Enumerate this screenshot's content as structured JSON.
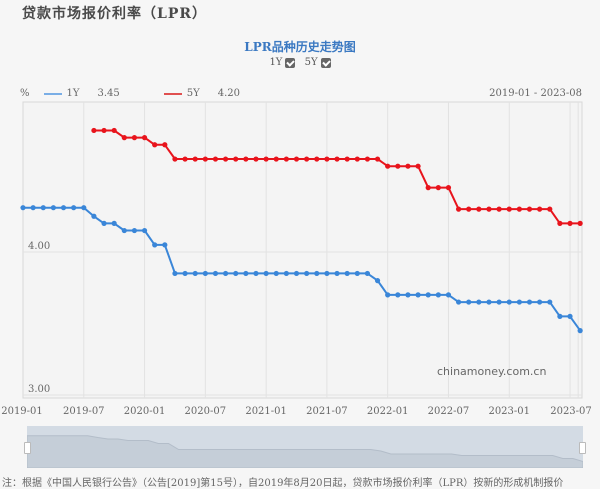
{
  "page": {
    "title": "贷款市场报价利率（LPR）",
    "chart_title": "LPR品种历史走势图",
    "toggles": [
      {
        "label": "1Y",
        "checked": true
      },
      {
        "label": "5Y",
        "checked": true
      }
    ],
    "unit": "%",
    "legend": [
      {
        "name": "1Y",
        "latest": "3.45",
        "color": "#3a86d8"
      },
      {
        "name": "5Y",
        "latest": "4.20",
        "color": "#e8141c"
      }
    ],
    "date_range": "2019-01 - 2023-08",
    "watermark": "chinamoney.com.cn",
    "footer": "注：根据《中国人民银行公告》（公告[2019]第15号），自2019年8月20日起，贷款市场报价利率（LPR）按新的形成机制报价"
  },
  "chart_data": {
    "type": "line",
    "title": "LPR品种历史走势图",
    "xlabel": "",
    "ylabel": "%",
    "ylim": [
      3.0,
      5.0
    ],
    "y_ticks": [
      "4.00",
      "3.00"
    ],
    "x_ticks": [
      "2019-01",
      "2019-07",
      "2020-01",
      "2020-07",
      "2021-01",
      "2021-07",
      "2022-01",
      "2022-07",
      "2023-01",
      "2023-07"
    ],
    "grid": true,
    "legend_position": "top-left",
    "x": [
      "2019-01",
      "2019-02",
      "2019-03",
      "2019-04",
      "2019-05",
      "2019-06",
      "2019-07",
      "2019-08",
      "2019-09",
      "2019-10",
      "2019-11",
      "2019-12",
      "2020-01",
      "2020-02",
      "2020-03",
      "2020-04",
      "2020-05",
      "2020-06",
      "2020-07",
      "2020-08",
      "2020-09",
      "2020-10",
      "2020-11",
      "2020-12",
      "2021-01",
      "2021-02",
      "2021-03",
      "2021-04",
      "2021-05",
      "2021-06",
      "2021-07",
      "2021-08",
      "2021-09",
      "2021-10",
      "2021-11",
      "2021-12",
      "2022-01",
      "2022-02",
      "2022-03",
      "2022-04",
      "2022-05",
      "2022-06",
      "2022-07",
      "2022-08",
      "2022-09",
      "2022-10",
      "2022-11",
      "2022-12",
      "2023-01",
      "2023-02",
      "2023-03",
      "2023-04",
      "2023-05",
      "2023-06",
      "2023-07",
      "2023-08"
    ],
    "series": [
      {
        "name": "1Y",
        "color": "#3a86d8",
        "values": [
          4.31,
          4.31,
          4.31,
          4.31,
          4.31,
          4.31,
          4.31,
          4.25,
          4.2,
          4.2,
          4.15,
          4.15,
          4.15,
          4.05,
          4.05,
          3.85,
          3.85,
          3.85,
          3.85,
          3.85,
          3.85,
          3.85,
          3.85,
          3.85,
          3.85,
          3.85,
          3.85,
          3.85,
          3.85,
          3.85,
          3.85,
          3.85,
          3.85,
          3.85,
          3.85,
          3.8,
          3.7,
          3.7,
          3.7,
          3.7,
          3.7,
          3.7,
          3.7,
          3.65,
          3.65,
          3.65,
          3.65,
          3.65,
          3.65,
          3.65,
          3.65,
          3.65,
          3.65,
          3.55,
          3.55,
          3.45
        ]
      },
      {
        "name": "5Y",
        "color": "#e8141c",
        "values": [
          null,
          null,
          null,
          null,
          null,
          null,
          null,
          4.85,
          4.85,
          4.85,
          4.8,
          4.8,
          4.8,
          4.75,
          4.75,
          4.65,
          4.65,
          4.65,
          4.65,
          4.65,
          4.65,
          4.65,
          4.65,
          4.65,
          4.65,
          4.65,
          4.65,
          4.65,
          4.65,
          4.65,
          4.65,
          4.65,
          4.65,
          4.65,
          4.65,
          4.65,
          4.6,
          4.6,
          4.6,
          4.6,
          4.45,
          4.45,
          4.45,
          4.3,
          4.3,
          4.3,
          4.3,
          4.3,
          4.3,
          4.3,
          4.3,
          4.3,
          4.3,
          4.2,
          4.2,
          4.2
        ]
      }
    ]
  }
}
